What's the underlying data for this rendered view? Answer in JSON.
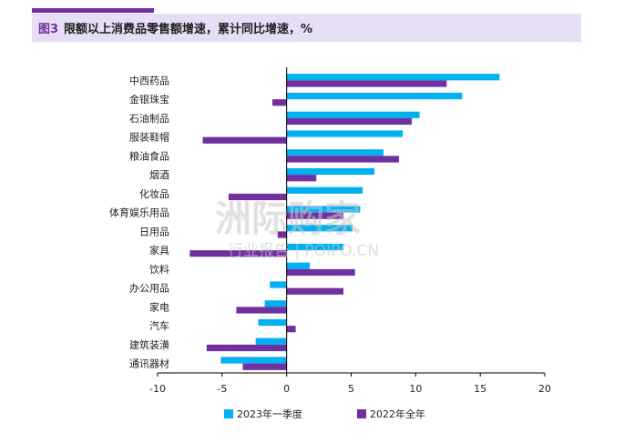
{
  "header": {
    "figure_tag": "图3",
    "title": "限额以上消费品零售额增速，累计同比增速，%"
  },
  "watermark": {
    "main": "洲际购家",
    "sub": "行业报告 | POIPO.CN"
  },
  "colors": {
    "series1": "#00b0f0",
    "series2": "#7030a0",
    "accent": "#7030a0"
  },
  "chart_data": {
    "type": "bar",
    "orientation": "horizontal",
    "categories": [
      "中西药品",
      "金银珠宝",
      "石油制品",
      "服装鞋帽",
      "粮油食品",
      "烟酒",
      "化妆品",
      "体育娱乐用品",
      "日用品",
      "家具",
      "饮料",
      "办公用品",
      "家电",
      "汽车",
      "建筑装潢",
      "通讯器材"
    ],
    "series": [
      {
        "name": "2023年一季度",
        "values": [
          16.5,
          13.6,
          10.3,
          9.0,
          7.5,
          6.8,
          5.9,
          5.7,
          5.1,
          4.4,
          1.8,
          -1.3,
          -1.7,
          -2.2,
          -2.4,
          -5.1
        ]
      },
      {
        "name": "2022年全年",
        "values": [
          12.4,
          -1.1,
          9.7,
          -6.5,
          8.7,
          2.3,
          -4.5,
          4.4,
          -0.7,
          -7.5,
          5.3,
          4.4,
          -3.9,
          0.7,
          -6.2,
          -3.4
        ]
      }
    ],
    "xlim": [
      -10,
      20
    ],
    "xticks": [
      -10,
      -5,
      0,
      5,
      10,
      15,
      20
    ],
    "xtick_labels": [
      "-10",
      "-5",
      "0",
      "5",
      "10",
      "15",
      "20"
    ],
    "legend_position": "bottom",
    "grid": false
  }
}
